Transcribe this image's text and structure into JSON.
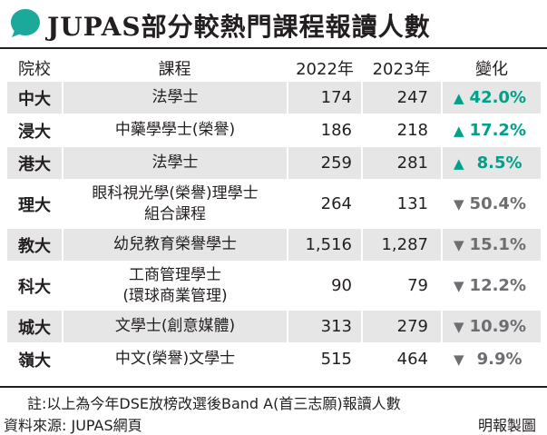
{
  "title": "JUPAS部分較熱門課程報讀人數",
  "headers": {
    "school": "院校",
    "course": "課程",
    "y2022": "2022年",
    "y2023": "2023年",
    "change": "變化"
  },
  "rows": [
    {
      "school": "中大",
      "course": [
        "法學士"
      ],
      "y2022": "174",
      "y2023": "247",
      "direction": "up",
      "arrow": "▲",
      "change": "42.0%"
    },
    {
      "school": "浸大",
      "course": [
        "中藥學學士(榮譽)"
      ],
      "y2022": "186",
      "y2023": "218",
      "direction": "up",
      "arrow": "▲",
      "change": "17.2%"
    },
    {
      "school": "港大",
      "course": [
        "法學士"
      ],
      "y2022": "259",
      "y2023": "281",
      "direction": "up",
      "arrow": "▲",
      "change": "8.5%"
    },
    {
      "school": "理大",
      "course": [
        "眼科視光學(榮譽)理學士",
        "組合課程"
      ],
      "y2022": "264",
      "y2023": "131",
      "direction": "down",
      "arrow": "▼",
      "change": "50.4%"
    },
    {
      "school": "教大",
      "course": [
        "幼兒教育榮譽學士"
      ],
      "y2022": "1,516",
      "y2023": "1,287",
      "direction": "down",
      "arrow": "▼",
      "change": "15.1%"
    },
    {
      "school": "科大",
      "course": [
        "工商管理學士",
        "(環球商業管理)"
      ],
      "y2022": "90",
      "y2023": "79",
      "direction": "down",
      "arrow": "▼",
      "change": "12.2%"
    },
    {
      "school": "城大",
      "course": [
        "文學士(創意媒體)"
      ],
      "y2022": "313",
      "y2023": "279",
      "direction": "down",
      "arrow": "▼",
      "change": "10.9%"
    },
    {
      "school": "嶺大",
      "course": [
        "中文(榮譽)文學士"
      ],
      "y2022": "515",
      "y2023": "464",
      "direction": "down",
      "arrow": "▼",
      "change": "9.9%"
    }
  ],
  "note": "註:以上為今年DSE放榜改選後Band A(首三志願)報讀人數",
  "source": "資料來源: JUPAS網頁",
  "brand": "明報製圖",
  "colors": {
    "up": "#00a08a",
    "down": "#6d6e71",
    "shade": "#e6e6e6",
    "icon": "#1aa99a"
  }
}
